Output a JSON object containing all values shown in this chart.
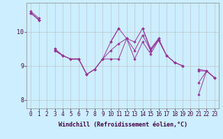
{
  "hours": [
    0,
    1,
    2,
    3,
    4,
    5,
    6,
    7,
    8,
    9,
    10,
    11,
    12,
    13,
    14,
    15,
    16,
    17,
    18,
    19,
    20,
    21,
    22,
    23
  ],
  "series": {
    "s1": [
      10.55,
      10.35,
      null,
      9.45,
      9.3,
      9.2,
      9.2,
      8.75,
      8.9,
      9.2,
      9.45,
      9.65,
      9.8,
      9.45,
      9.9,
      9.45,
      9.75,
      9.3,
      9.1,
      9.0,
      null,
      8.5,
      8.85,
      8.65
    ],
    "s2": [
      10.55,
      10.35,
      null,
      9.45,
      9.3,
      9.2,
      9.2,
      8.75,
      8.9,
      9.2,
      9.2,
      9.2,
      9.8,
      9.2,
      9.7,
      9.35,
      9.75,
      9.3,
      9.1,
      9.0,
      null,
      8.15,
      8.85,
      8.65
    ],
    "s3": [
      10.6,
      10.4,
      null,
      9.5,
      9.3,
      null,
      null,
      null,
      null,
      null,
      9.7,
      10.1,
      null,
      null,
      10.1,
      9.5,
      9.8,
      null,
      null,
      null,
      null,
      8.85,
      8.85,
      8.65
    ],
    "s4": [
      10.55,
      10.35,
      null,
      9.5,
      9.3,
      9.2,
      9.2,
      8.75,
      8.9,
      9.2,
      9.7,
      10.1,
      9.8,
      9.7,
      10.1,
      9.45,
      9.8,
      9.3,
      9.1,
      9.0,
      null,
      8.9,
      8.85,
      8.65
    ]
  },
  "color": "#993399",
  "bg_color": "#cceeff",
  "grid_color": "#bbbbbb",
  "ylim": [
    7.75,
    10.85
  ],
  "yticks": [
    8,
    9,
    10
  ],
  "xlim": [
    -0.5,
    23.5
  ],
  "xlabel": "Windchill (Refroidissement éolien,°C)",
  "xlabel_fontsize": 6.0,
  "tick_fontsize": 5.5
}
